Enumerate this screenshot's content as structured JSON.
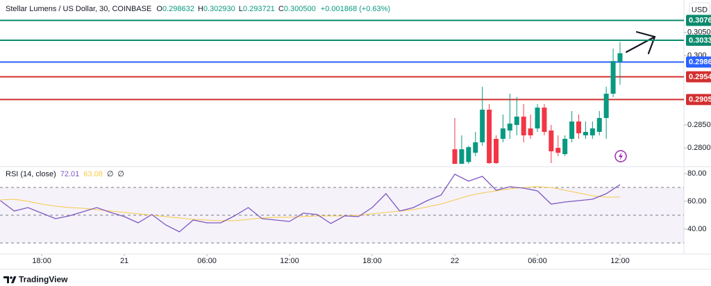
{
  "chart_data": [
    {
      "type": "candlestick",
      "title": "Stellar Lumens / US Dollar, 30, COINBASE",
      "ohlc_labels": [
        "O",
        "H",
        "L",
        "C"
      ],
      "ohlc_values": [
        "0.298632",
        "0.302930",
        "0.293721",
        "0.300500"
      ],
      "change": "+0.001868 (+0.63%)",
      "currency": "USD",
      "up_color": "#089981",
      "down_color": "#f23645",
      "x": [
        24,
        24.5,
        25,
        25.5,
        26,
        26.5,
        27,
        27.5,
        28,
        28.5,
        29,
        29.5,
        30,
        30.5,
        31,
        31.5,
        32,
        32.5,
        33,
        33.5,
        34,
        34.5,
        35,
        35.5,
        36
      ],
      "open": [
        0.27975,
        0.2766,
        0.277,
        0.279,
        0.28125,
        0.2883,
        0.282,
        0.282,
        0.2838,
        0.285,
        0.2868,
        0.28425,
        0.28425,
        0.28875,
        0.2838,
        0.28005,
        0.2787,
        0.282,
        0.28575,
        0.28275,
        0.28275,
        0.2835,
        0.2865,
        0.29175,
        0.298632
      ],
      "high": [
        0.2865,
        0.28275,
        0.2805,
        0.2835,
        0.29325,
        0.2895,
        0.28275,
        0.28725,
        0.29175,
        0.291,
        0.2895,
        0.28725,
        0.2895,
        0.2895,
        0.285,
        0.28275,
        0.28275,
        0.288,
        0.28725,
        0.28575,
        0.28575,
        0.288,
        0.29325,
        0.3015,
        0.30293
      ],
      "low": [
        0.2766,
        0.2766,
        0.2766,
        0.27825,
        0.2805,
        0.2766,
        0.2766,
        0.28125,
        0.282,
        0.28275,
        0.28125,
        0.282,
        0.2835,
        0.28275,
        0.27675,
        0.27825,
        0.27825,
        0.28125,
        0.282,
        0.282,
        0.282,
        0.28275,
        0.282,
        0.291,
        0.293721
      ],
      "close": [
        0.2766,
        0.27975,
        0.2802,
        0.28125,
        0.2883,
        0.27675,
        0.27675,
        0.28425,
        0.2853,
        0.2868,
        0.28275,
        0.28275,
        0.28875,
        0.2835,
        0.2793,
        0.279,
        0.282,
        0.28575,
        0.2832,
        0.2835,
        0.28425,
        0.2865,
        0.29175,
        0.2988,
        0.3005
      ],
      "levels": [
        {
          "value": 0.3076,
          "color": "#0b8a6e"
        },
        {
          "value": 0.3033,
          "color": "#0b8a6e"
        },
        {
          "value": 0.2986,
          "color": "#2962ff"
        },
        {
          "value": 0.2954,
          "color": "#d32f2f"
        },
        {
          "value": 0.2905,
          "color": "#d32f2f"
        }
      ],
      "xlim": [
        -9.03,
        40.64
      ],
      "ylim": [
        0.2763,
        0.31125
      ],
      "yticks": [
        {
          "value": 0.305,
          "label": "0.3050"
        },
        {
          "value": 0.3,
          "label": "0.300"
        },
        {
          "value": 0.285,
          "label": "0.2850"
        },
        {
          "value": 0.28,
          "label": "0.2800"
        }
      ],
      "xticks": [
        {
          "value": -6,
          "label": "18:00"
        },
        {
          "value": 0,
          "label": "21"
        },
        {
          "value": 6,
          "label": "06:00"
        },
        {
          "value": 12,
          "label": "12:00"
        },
        {
          "value": 18,
          "label": "18:00"
        },
        {
          "value": 24,
          "label": "22"
        },
        {
          "value": 30,
          "label": "06:00"
        },
        {
          "value": 36,
          "label": "12:00"
        }
      ]
    },
    {
      "type": "line",
      "title": "RSI (14, close)",
      "extra_labels": [
        "∅",
        "∅"
      ],
      "x": [
        -9,
        -8,
        -7,
        -6,
        -5,
        -4,
        -3,
        -2,
        -1,
        0,
        1,
        2,
        3,
        4,
        5,
        6,
        7,
        8,
        9,
        10,
        11,
        12,
        13,
        14,
        15,
        16,
        17,
        18,
        19,
        20,
        21,
        22,
        23,
        24,
        25,
        26,
        27,
        28,
        29,
        30,
        31,
        32,
        33,
        34,
        35,
        36
      ],
      "series": [
        {
          "color": "#7e57c2",
          "values": [
            60.5,
            53,
            55.5,
            51.5,
            47.5,
            49.5,
            52.5,
            55.5,
            52,
            49,
            44.5,
            50.5,
            43,
            38,
            46.5,
            44.5,
            44.5,
            49.5,
            55.5,
            47.5,
            46.5,
            45.5,
            51.5,
            50.5,
            44,
            49.5,
            49,
            55.5,
            65.5,
            53,
            55.5,
            60.5,
            64.5,
            79.5,
            74.5,
            78,
            68,
            70.5,
            69.5,
            67.5,
            58,
            59.5,
            60.5,
            61.5,
            65.5,
            72.01
          ]
        },
        {
          "color": "#f7c948",
          "values": [
            61,
            61.5,
            60,
            58,
            56.5,
            55.5,
            55,
            54,
            53,
            52,
            51,
            50,
            49,
            48,
            47,
            46.5,
            46,
            46,
            47,
            48,
            48.5,
            48.5,
            49,
            49.5,
            49.5,
            49.5,
            50,
            51,
            52,
            53,
            54,
            56,
            58,
            61,
            64,
            66,
            67.5,
            69,
            70,
            70.5,
            70,
            68,
            66,
            64,
            63,
            63.08
          ]
        }
      ],
      "bands": [
        70,
        50,
        30
      ],
      "band_color": "#7e57c2",
      "xlim": [
        -9.03,
        40.64
      ],
      "ylim": [
        22.5,
        85
      ],
      "yticks": [
        {
          "value": 80,
          "label": "80.00"
        },
        {
          "value": 60,
          "label": "60.00"
        },
        {
          "value": 40,
          "label": "40.00"
        }
      ]
    }
  ],
  "footer": {
    "brand": "TradingView"
  }
}
